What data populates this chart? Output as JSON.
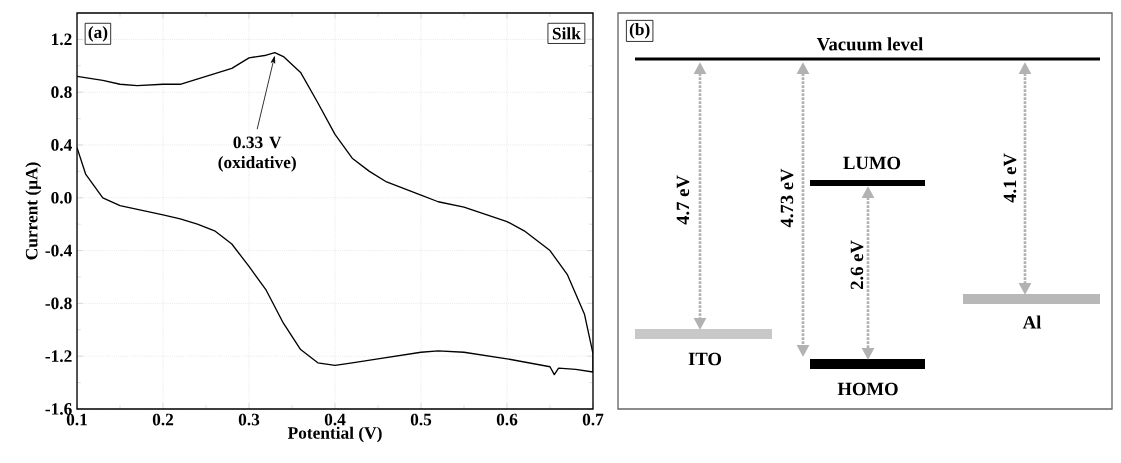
{
  "chart_data": [
    {
      "type": "line",
      "title": "(a)",
      "xlabel": "Potential (V)",
      "ylabel": "Current (μA)",
      "xlim": [
        0.1,
        0.7
      ],
      "xticks": [
        0.1,
        0.2,
        0.3,
        0.4,
        0.5,
        0.6,
        0.7
      ],
      "ylim": [
        -1.6,
        1.4
      ],
      "yticks": [
        -1.6,
        -1.2,
        -0.8,
        -0.4,
        {
          "value": 0,
          "label": "0.0"
        },
        0.4,
        0.8,
        1.2
      ],
      "grid": true,
      "series": [
        {
          "color": "#000000",
          "x": [
            0.1,
            0.13,
            0.15,
            0.17,
            0.2,
            0.22,
            0.25,
            0.28,
            0.3,
            0.32,
            0.33,
            0.34,
            0.36,
            0.38,
            0.4,
            0.42,
            0.44,
            0.46,
            0.5,
            0.52,
            0.55,
            0.6,
            0.62,
            0.65,
            0.67,
            0.69,
            0.7,
            0.7,
            0.68,
            0.66,
            0.655,
            0.65,
            0.6,
            0.55,
            0.52,
            0.5,
            0.45,
            0.42,
            0.4,
            0.38,
            0.36,
            0.34,
            0.32,
            0.3,
            0.28,
            0.26,
            0.24,
            0.22,
            0.2,
            0.15,
            0.13,
            0.11,
            0.1
          ],
          "values": [
            0.92,
            0.89,
            0.86,
            0.85,
            0.86,
            0.86,
            0.92,
            0.98,
            1.06,
            1.08,
            1.1,
            1.07,
            0.95,
            0.72,
            0.48,
            0.3,
            0.2,
            0.12,
            0.02,
            -0.03,
            -0.07,
            -0.18,
            -0.25,
            -0.4,
            -0.58,
            -0.88,
            -1.18,
            -1.32,
            -1.3,
            -1.29,
            -1.34,
            -1.28,
            -1.22,
            -1.17,
            -1.16,
            -1.17,
            -1.22,
            -1.25,
            -1.27,
            -1.25,
            -1.15,
            -0.95,
            -0.7,
            -0.52,
            -0.35,
            -0.25,
            -0.2,
            -0.16,
            -0.13,
            -0.06,
            0.0,
            0.18,
            0.38
          ]
        }
      ],
      "annotations": [
        {
          "text": "0.33 V (oxidative)",
          "x": 0.33,
          "y": 1.1
        },
        "Silk"
      ]
    },
    {
      "type": "other",
      "title": "(b)",
      "annotations": [
        "Vacuum level",
        "LUMO",
        "HOMO",
        "ITO",
        "Al",
        "4.7 eV",
        "4.73 eV",
        "2.6 eV",
        "4.1 eV"
      ]
    }
  ]
}
